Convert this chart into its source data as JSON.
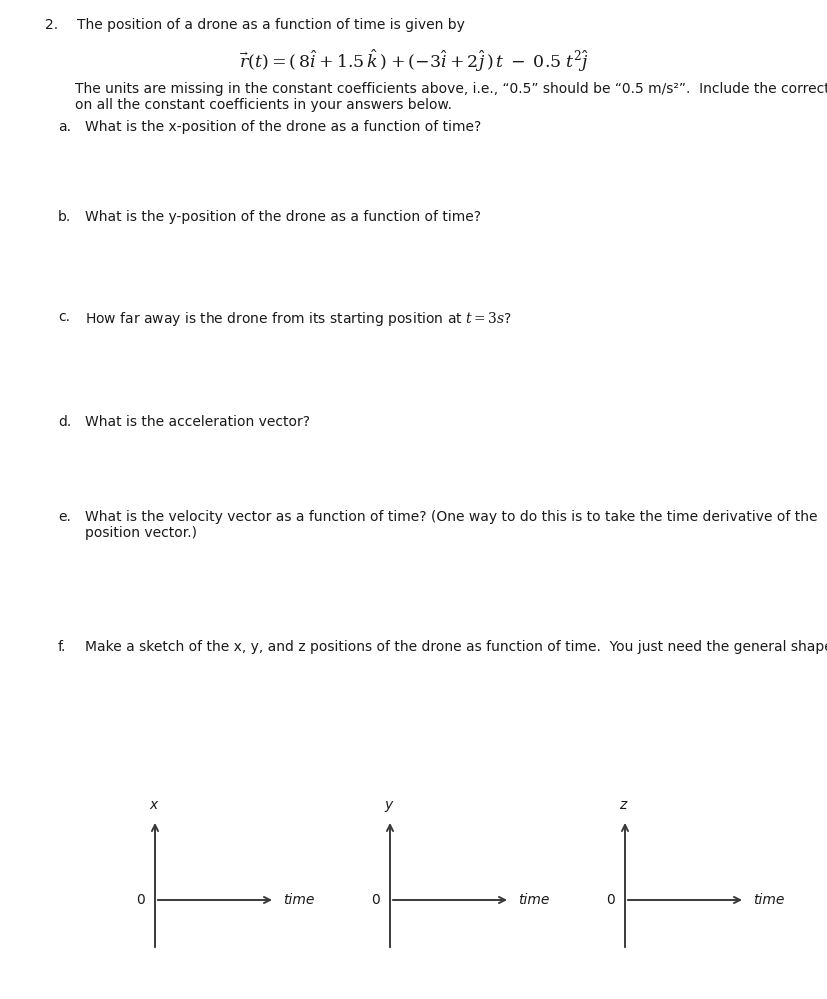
{
  "background_color": "#ffffff",
  "page_width": 8.28,
  "page_height": 9.99,
  "question_number": "2.",
  "question_intro": "The position of a drone as a function of time is given by",
  "equation": "$\\vec{r}(t) = (\\,8\\hat{i} + 1.5\\,\\hat{k}\\,) + (-3\\hat{i} + 2\\hat{j}\\,)\\,t \\;-\\; 0.5\\;t^2\\hat{j}$",
  "units_note_line1": "The units are missing in the constant coefficients above, i.e., “0.5” should be “0.5 m/s²”.  Include the correct units",
  "units_note_line2": "on all the constant coefficients in your answers below.",
  "sub_questions": [
    {
      "label": "a.",
      "text": "What is the x-position of the drone as a function of time?",
      "extra_line": null
    },
    {
      "label": "b.",
      "text": "What is the y-position of the drone as a function of time?",
      "extra_line": null
    },
    {
      "label": "c.",
      "text": "How far away is the drone from its starting position at $t = 3s$?",
      "extra_line": null
    },
    {
      "label": "d.",
      "text": "What is the acceleration vector?",
      "extra_line": null
    },
    {
      "label": "e.",
      "text": "What is the velocity vector as a function of time? (One way to do this is to take the time derivative of the",
      "extra_line": "position vector.)"
    },
    {
      "label": "f.",
      "text": "Make a sketch of the x, y, and z positions of the drone as function of time.  You just need the general shape.",
      "extra_line": null
    }
  ],
  "axes_labels": [
    "x",
    "y",
    "z"
  ],
  "axes_zero_label": "0",
  "axes_time_label": "time",
  "text_color": "#1a1a1a",
  "axis_color": "#3a3a3a",
  "body_fontsize": 10.0,
  "eq_fontsize": 12.5,
  "sub_label_fontsize": 10.0
}
